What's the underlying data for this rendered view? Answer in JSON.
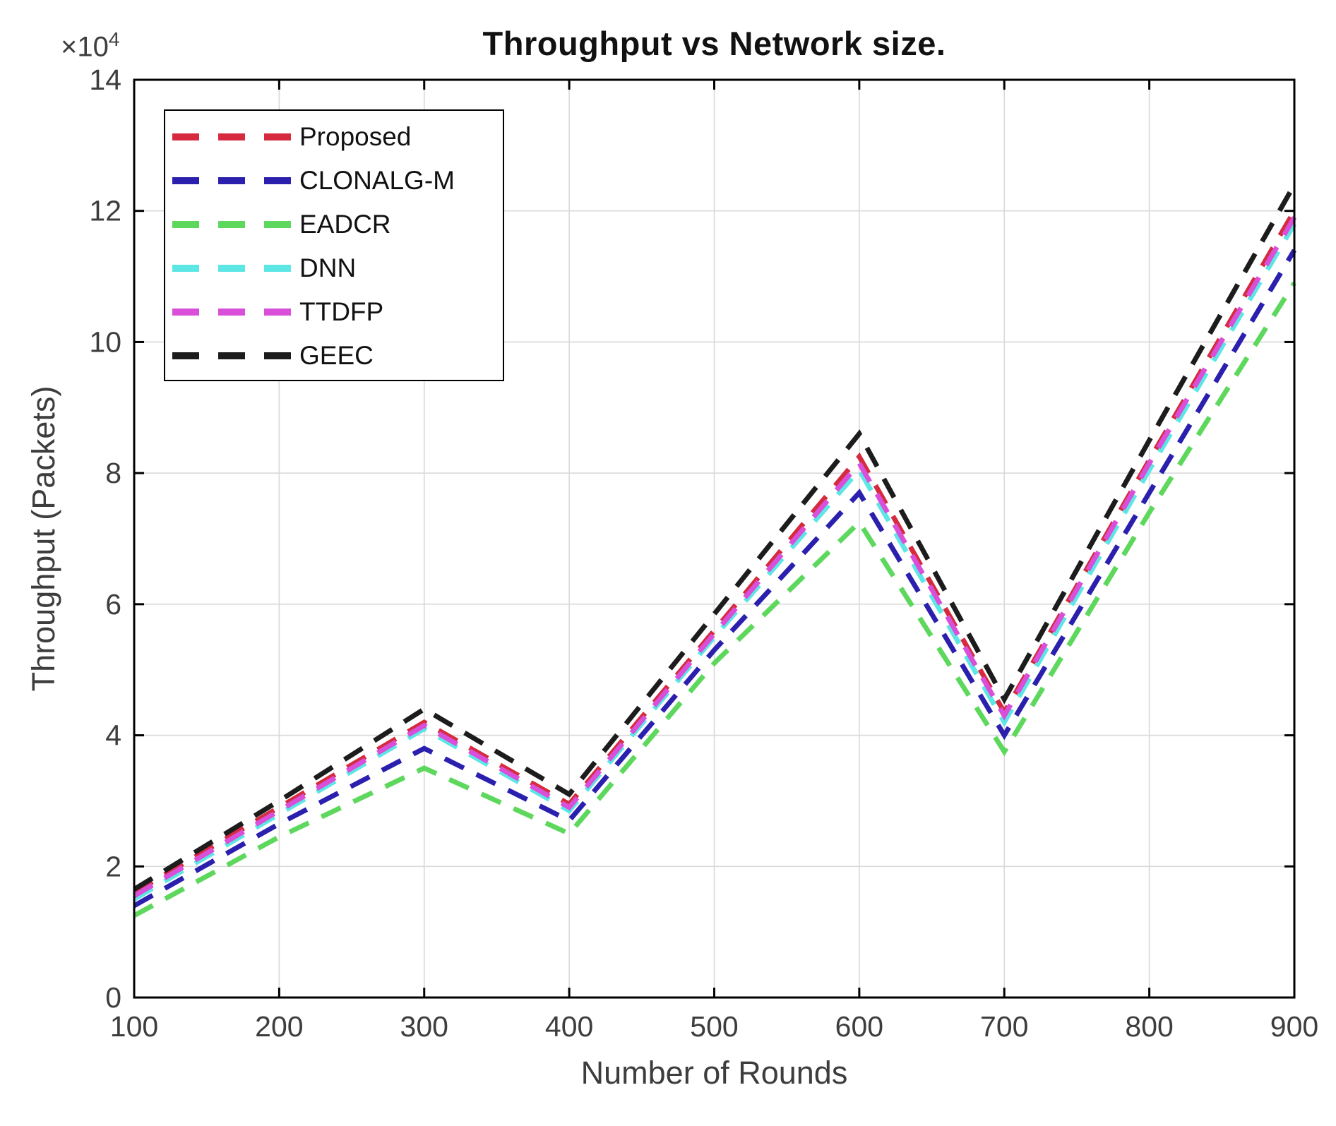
{
  "title": "Throughput vs Network size.",
  "axis": {
    "xlabel": "Number of Rounds",
    "ylabel": "Throughput (Packets)",
    "multiplier_base": "×10",
    "multiplier_exponent": "4",
    "x_ticks": [
      100,
      200,
      300,
      400,
      500,
      600,
      700,
      800,
      900
    ],
    "y_ticks": [
      0,
      2,
      4,
      6,
      8,
      10,
      12,
      14
    ],
    "xlim": [
      100,
      900
    ],
    "ylim": [
      0,
      14
    ]
  },
  "chart_data": {
    "type": "line",
    "line_style": "dashed",
    "grid": true,
    "legend_position": "top-left",
    "x": [
      100,
      200,
      300,
      400,
      500,
      600,
      700,
      800,
      900
    ],
    "y_unit": "packets × 10^4",
    "series": [
      {
        "name": "Proposed",
        "color": "#d62b3e",
        "values": [
          1.6,
          2.9,
          4.2,
          2.95,
          5.6,
          8.25,
          4.35,
          8.2,
          12.0
        ]
      },
      {
        "name": "CLONALG-M",
        "color": "#2b1fae",
        "values": [
          1.4,
          2.65,
          3.8,
          2.7,
          5.3,
          7.7,
          4.0,
          7.7,
          11.4
        ]
      },
      {
        "name": "EADCR",
        "color": "#5dd85d",
        "values": [
          1.25,
          2.45,
          3.5,
          2.5,
          5.1,
          7.25,
          3.75,
          7.4,
          10.9
        ]
      },
      {
        "name": "DNN",
        "color": "#5ce6e6",
        "values": [
          1.5,
          2.8,
          4.1,
          2.85,
          5.5,
          8.05,
          4.2,
          8.05,
          11.8
        ]
      },
      {
        "name": "TTDFP",
        "color": "#d94fd9",
        "values": [
          1.55,
          2.85,
          4.15,
          2.9,
          5.55,
          8.15,
          4.3,
          8.15,
          11.9
        ]
      },
      {
        "name": "GEEC",
        "color": "#1c1c1c",
        "values": [
          1.65,
          3.0,
          4.4,
          3.1,
          5.85,
          8.6,
          4.55,
          8.5,
          12.4
        ]
      }
    ]
  }
}
